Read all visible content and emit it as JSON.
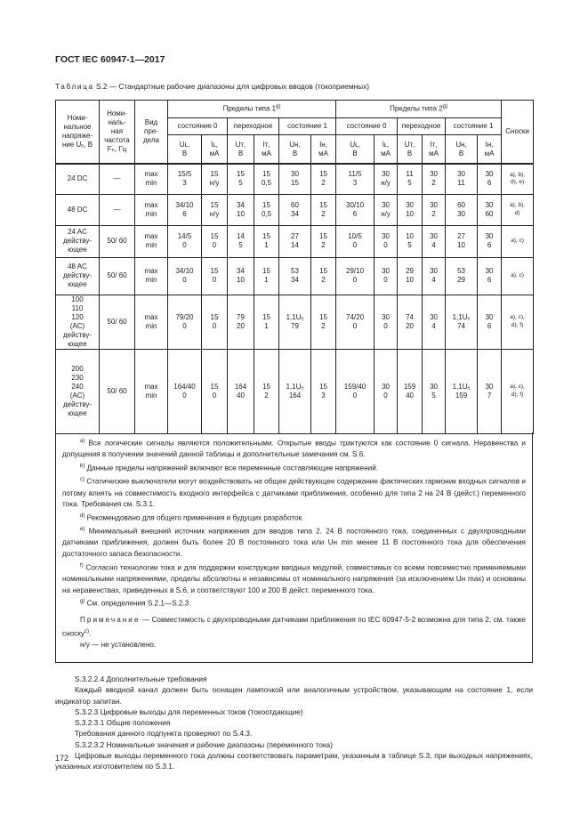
{
  "header": "ГОСТ IEC 60947-1—2017",
  "caption": {
    "prefix": "Таблица",
    "text": " S.2 — Стандартные рабочие диапазоны для цифровых вводов (токоприемных)"
  },
  "table": {
    "col_nominal": "Номи-\nнальное\nнапряже-\nние Uₑ, В",
    "col_freq": "Номи-\nналь-\nная\nчастота\nFₙ, Гц",
    "col_kind": "Вид\nпре-\nдела",
    "type1": "Пределы типа 1",
    "type1_sup": "g)",
    "type2": "Пределы типа 2",
    "type2_sup": "g)",
    "footnotes_col": "Сноски",
    "states": [
      "состояние 0",
      "переходное",
      "состояние 1",
      "состояние 0",
      "переходное",
      "состояние 1"
    ],
    "params": [
      "Uʟ,\nВ",
      "Iʟ,\nмА",
      "Uᴛ,\nВ",
      "Iᴛ,\nмА",
      "Uʜ,\nВ",
      "Iʜ,\nмА",
      "Uʟ,\nВ",
      "Iʟ,\nмА",
      "Uᴛ,\nВ",
      "Iᴛ,\nмА",
      "Uʜ,\nВ",
      "Iʜ,\nмА"
    ],
    "rows": [
      {
        "voltage": "24 DC",
        "freq": "—",
        "kind": "max\nmin",
        "values": [
          "15/5\n3",
          "15\nн/у",
          "15\n5",
          "15\n0,5",
          "30\n15",
          "15\n2",
          "11/5\n3",
          "30\nн/у",
          "11\n5",
          "30\n2",
          "30\n11",
          "30\n6"
        ],
        "notes": "a), b),\nd), e)"
      },
      {
        "voltage": "48 DC",
        "freq": "—",
        "kind": "max\nmin",
        "values": [
          "34/10\n6",
          "15\nн/у",
          "34\n10",
          "15\n0,5",
          "60\n34",
          "15\n2",
          "30/10\n6",
          "30\nн/у",
          "30\n10",
          "30\n2",
          "60\n30",
          "30\n60"
        ],
        "notes": "a), b),\nd)"
      },
      {
        "voltage": "24 AC\nдейству-\nющее",
        "freq": "50/ 60",
        "kind": "max\nmin",
        "values": [
          "14/5\n0",
          "15\n0",
          "14\n5",
          "15\n1",
          "27\n14",
          "15\n2",
          "10/5\n0",
          "30\n0",
          "10\n5",
          "30\n4",
          "27\n10",
          "30\n6"
        ],
        "notes": "a), c)"
      },
      {
        "voltage": "48 AC\nдейству-\nющее",
        "freq": "50/ 60",
        "kind": "max\nmin",
        "values": [
          "34/10\n0",
          "15\n0",
          "34\n10",
          "15\n1",
          "53\n34",
          "15\n2",
          "29/10\n0",
          "30\n0",
          "29\n10",
          "30\n4",
          "53\n29",
          "30\n6"
        ],
        "notes": "a), c)"
      },
      {
        "voltage": "100\n110\n120\n(AC)\nдейству-\nющее",
        "freq": "50/ 60",
        "kind": "max\nmin",
        "values": [
          "79/20\n0",
          "15\n0",
          "79\n20",
          "15\n1",
          "1,1Uₑ\n79",
          "15\n2",
          "74/20\n0",
          "30\n0",
          "74\n20",
          "30\n4",
          "1,1Uₑ\n74",
          "30\n6"
        ],
        "notes": "a), c),\nd), f)"
      },
      {
        "voltage": "200\n230\n240\n(AC)\nдейству-\nющее",
        "freq": "50/ 60",
        "kind": "max\nmin",
        "values": [
          "164/40\n0",
          "15\n0",
          "164\n40",
          "15\n2",
          "1,1Uₑ\n164",
          "15\n3",
          "159/40\n0",
          "30\n0",
          "159\n40",
          "30\n5",
          "1,1Uₑ\n159",
          "30\n7"
        ],
        "notes": "a), c),\nd), f)"
      }
    ]
  },
  "notes": [
    {
      "mark": "a)",
      "text": " Все логические сигналы являются положительными. Открытые вводы трактуются как состояние 0 сигнала. Неравенства и допущения в получении значений данной таблицы и дополнительные замечания см. S.6."
    },
    {
      "mark": "b)",
      "text": " Данные пределы напряжений включают все переменные составляющие напряжений."
    },
    {
      "mark": "c)",
      "text": " Статические выключатели могут воздействовать на общее действующее содержание фактических гармоник входных сигналов и потому влиять на совместимость входного интерфейса с датчиками приближения, особенно для типа 2 на 24 В (дейст.) переменного тока. Требования см. S.3.1."
    },
    {
      "mark": "d)",
      "text": " Рекомендовано для общего применения и будущих разработок."
    },
    {
      "mark": "e)",
      "text": " Минимальный внешний источник напряжения для вводов типа 2, 24 В постоянного тока, соединенных с двухпроводными датчиками приближения, должен быть более 20 В постоянного тока или Uʜ min менее 11 В постоянного тока для обеспечения достаточного запаса безопасности."
    },
    {
      "mark": "f)",
      "text": " Согласно технологии тока и для поддержки конструкции вводных модулей, совместимых со всеми повсеместно применяемыми номинальными напряжениями, пределы абсолютны и независимы от номинального напряжения (за исключением Uʜ max) и основаны на неравенствах, приведенных в S.6, и соответствуют 100 и 200 В дейст. переменного тока."
    },
    {
      "mark": "g)",
      "text": " См. определения S.2.1—S.2.3."
    }
  ],
  "remark": {
    "label": "Примечание",
    "text": " — Совместимость с двухпроводными датчиками приближения по IEC 60947-5-2 возможна для типа 2, см. также сноску",
    "sup": "c)",
    "end": "."
  },
  "nu": "н/у — не установлено.",
  "body": [
    "S.3.2.2.4 Дополнительные требования",
    "Каждый вводной канал должен быть оснащен лампочкой или аналогичным устройством, указывающим на состояние 1, если индикатор запитан.",
    "S.3.2.3 Цифровые выходы для переменных токов (токоотдающие)",
    "S.3.2.3.1 Общие положения",
    "Требования данного подпункта проверяют по S.4.3.",
    "S.3.2.3.2 Номинальные значения и рабочие диапазоны (переменного тока)",
    "Цифровые выходы переменного тока должны соответствовать параметрам, указанным в таблице S.3, при выходных напряжениях, указанных изготовителем по S.3.1."
  ],
  "page_number": "172"
}
